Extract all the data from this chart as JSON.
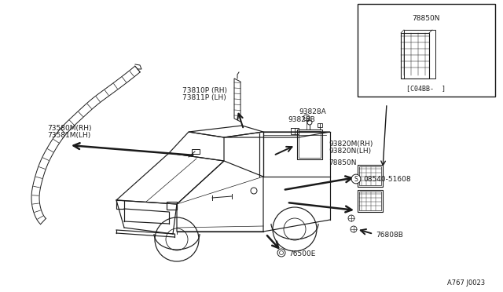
{
  "bg_color": "#ffffff",
  "line_color": "#1a1a1a",
  "footer_text": "A767 J0023",
  "labels": {
    "73580M_RH": "73580M(RH)",
    "73581M_LH": "73581M(LH)",
    "73810P_RH": "73810P (RH)",
    "73811P_LH": "73811P (LH)",
    "93828A": "93828A",
    "93828B": "93828B",
    "93820M_RH": "93820M(RH)",
    "93820N_LH": "93820N(LH)",
    "78850N_main": "78850N",
    "08540_51608": "08540-51608",
    "76808B": "76808B",
    "76500E": "76500E",
    "78850N_inset": "78850N",
    "C04BB": "[C04BB-  ]",
    "S_label": "S"
  }
}
